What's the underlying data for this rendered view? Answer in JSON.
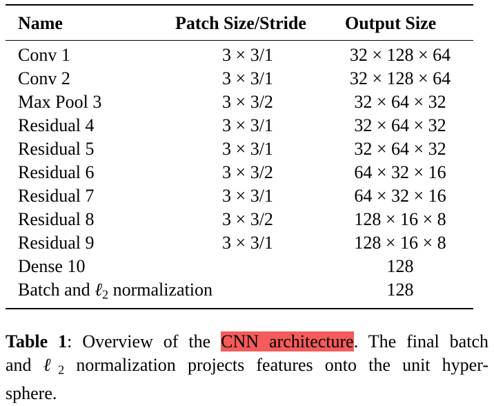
{
  "table": {
    "headers": {
      "name": "Name",
      "patch": "Patch Size/Stride",
      "output": "Output Size"
    },
    "rows": [
      {
        "name": "Conv 1",
        "patch": "3 × 3/1",
        "output": "32 × 128 × 64"
      },
      {
        "name": "Conv 2",
        "patch": "3 × 3/1",
        "output": "32 × 128 × 64"
      },
      {
        "name": "Max Pool 3",
        "patch": "3 × 3/2",
        "output": "32 × 64 × 32"
      },
      {
        "name": "Residual 4",
        "patch": "3 × 3/1",
        "output": "32 × 64 × 32"
      },
      {
        "name": "Residual 5",
        "patch": "3 × 3/1",
        "output": "32 × 64 × 32"
      },
      {
        "name": "Residual 6",
        "patch": "3 × 3/2",
        "output": "64 × 32 × 16"
      },
      {
        "name": "Residual 7",
        "patch": "3 × 3/1",
        "output": "64 × 32 × 16"
      },
      {
        "name": "Residual 8",
        "patch": "3 × 3/2",
        "output": "128 × 16 × 8"
      },
      {
        "name": "Residual 9",
        "patch": "3 × 3/1",
        "output": "128 × 16 × 8"
      },
      {
        "name": "Dense 10",
        "patch": "",
        "output": "128"
      },
      {
        "name_prefix": "Batch and ",
        "name_ell": "ℓ",
        "name_sub": "2",
        "name_suffix": " normalization",
        "patch": "",
        "output": "128"
      }
    ]
  },
  "caption": {
    "label": "Table 1",
    "text_before_highlight": ": Overview of the ",
    "highlight": "CNN architecture",
    "text_after_highlight": ". The final batch",
    "line2_prefix": "and ",
    "line2_ell": "ℓ",
    "line2_sub": "2",
    "line2_suffix": " normalization projects features onto the unit hyper-",
    "line3": "sphere.",
    "highlight_color": "#f45b5b"
  }
}
